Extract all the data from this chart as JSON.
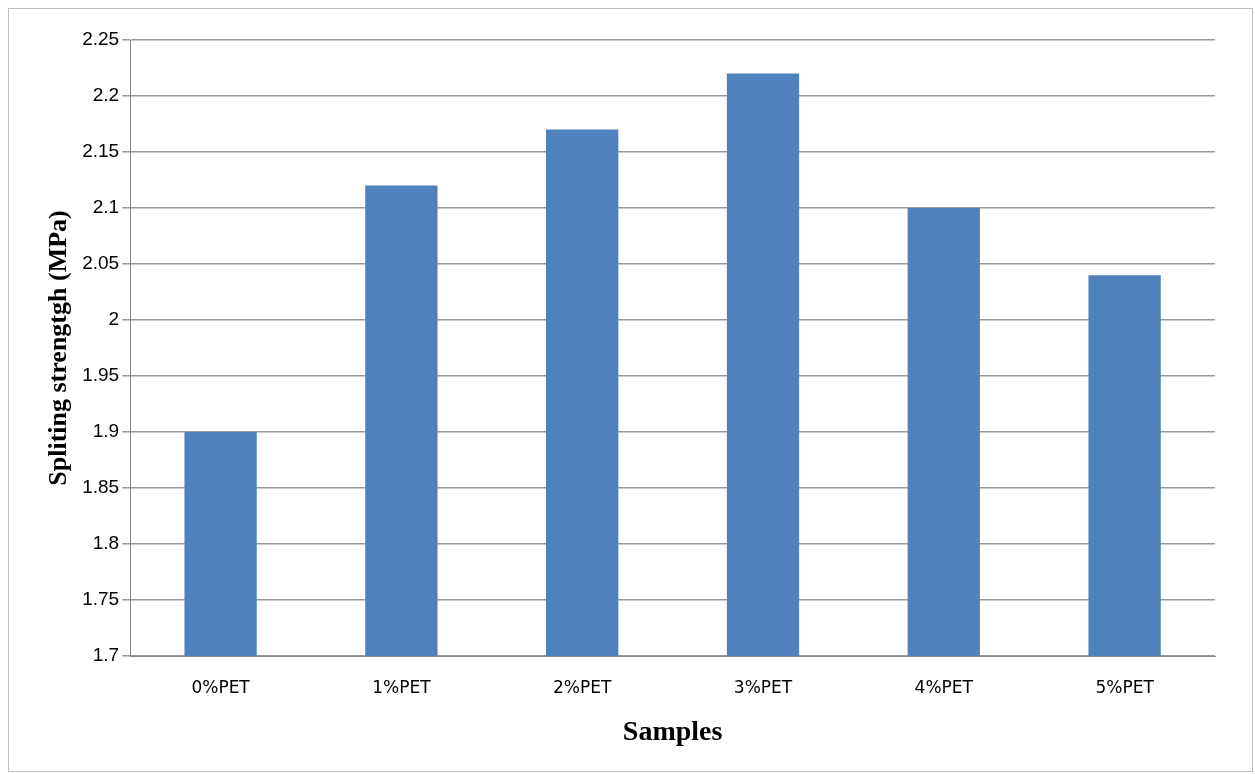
{
  "chart_data": {
    "type": "bar",
    "xlabel": "Samples",
    "ylabel": "Spliting strengtgh (MPa)",
    "categories": [
      "0%PET",
      "1%PET",
      "2%PET",
      "3%PET",
      "4%PET",
      "5%PET"
    ],
    "values": [
      1.9,
      2.12,
      2.17,
      2.22,
      2.1,
      2.04
    ],
    "color": "#4f81bd",
    "ylim": [
      1.7,
      2.25
    ],
    "yticks": [
      1.7,
      1.75,
      1.8,
      1.85,
      1.9,
      1.95,
      2,
      2.05,
      2.1,
      2.15,
      2.2,
      2.25
    ],
    "grid": "y"
  }
}
